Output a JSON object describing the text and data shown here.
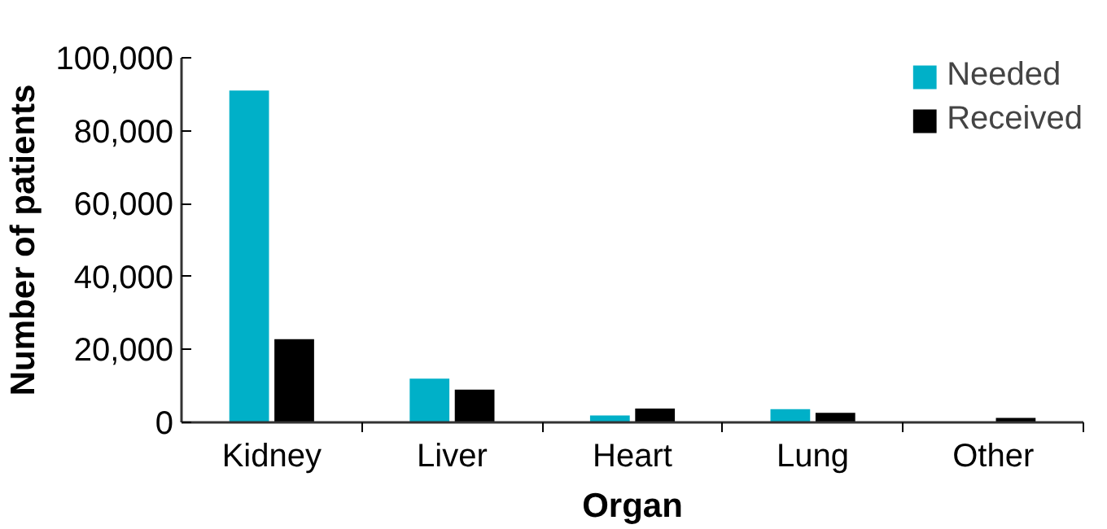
{
  "chart_data": {
    "type": "bar",
    "xlabel": "Organ",
    "ylabel": "Number of patients",
    "categories": [
      "Kidney",
      "Liver",
      "Heart",
      "Lung",
      "Other"
    ],
    "series": [
      {
        "name": "Needed",
        "color": "#00b0c8",
        "values": [
          91000,
          12000,
          1900,
          3600,
          null
        ]
      },
      {
        "name": "Received",
        "color": "#000000",
        "values": [
          22800,
          9000,
          3800,
          2600,
          1200
        ]
      }
    ],
    "ylim": [
      0,
      100000
    ],
    "yticks": [
      {
        "value": 0,
        "label": "0"
      },
      {
        "value": 20000,
        "label": "20,000"
      },
      {
        "value": 40000,
        "label": "40,000"
      },
      {
        "value": 60000,
        "label": "60,000"
      },
      {
        "value": 80000,
        "label": "80,000"
      },
      {
        "value": 100000,
        "label": "100,000"
      }
    ],
    "grid": false,
    "legend": "top right"
  }
}
